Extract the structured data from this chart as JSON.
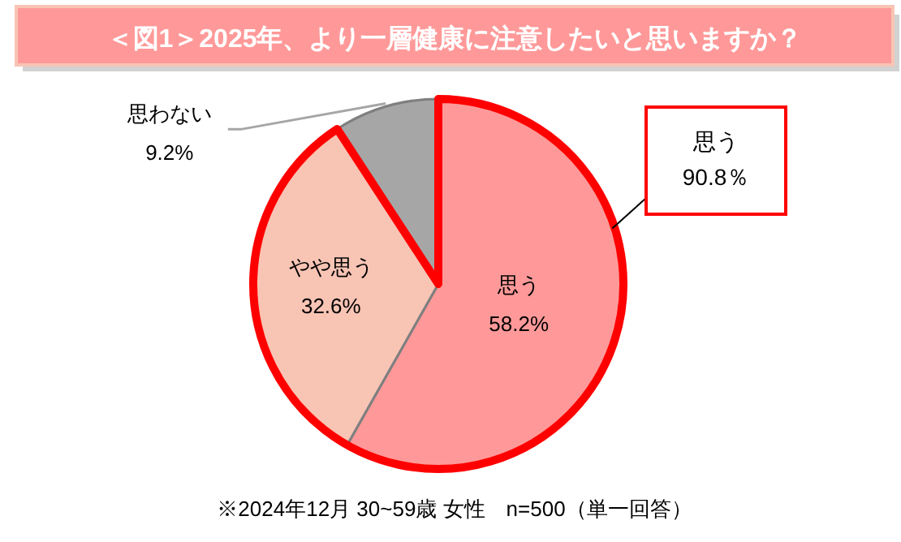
{
  "chart_data": {
    "type": "pie",
    "title": "＜図1＞2025年、より一層健康に注意したいと思いますか？",
    "categories": [
      "思う",
      "やや思う",
      "思わない"
    ],
    "values": [
      58.2,
      32.6,
      9.2
    ],
    "colors": [
      "#ff9999",
      "#f8c4b4",
      "#a6a6a6"
    ],
    "value_labels": [
      "58.2%",
      "32.6%",
      "9.2%"
    ],
    "annotations": [
      "思う\n90.8％",
      "※2024年12月 30~59歳 女性　n=500（単一回答）"
    ]
  }
}
